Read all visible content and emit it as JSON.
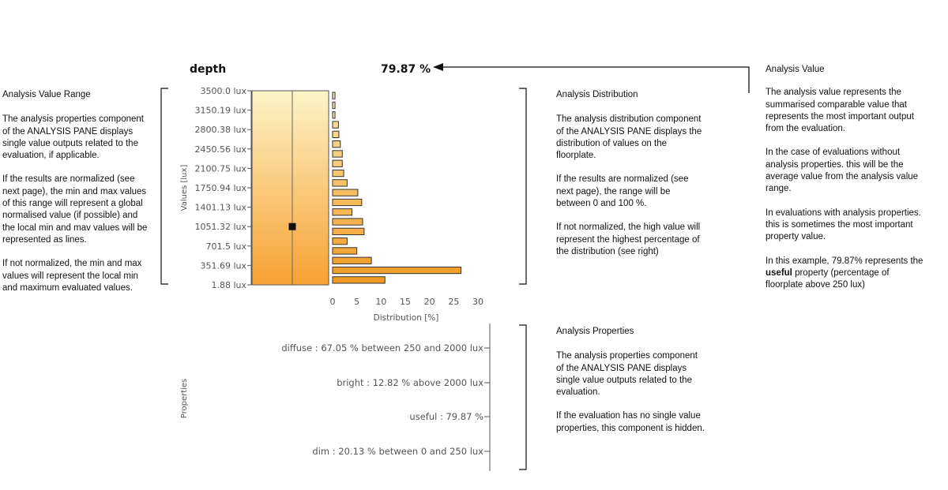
{
  "header": {
    "metric": "depth",
    "value": "79.87 %"
  },
  "range_note": {
    "title": "Analysis Value Range",
    "p1": "The analysis properties component of the ANALYSIS PANE displays single value outputs related to the evaluation, if applicable.",
    "p2": "If  the results are normalized (see next page), the min and max values of this range will represent a global normalised value (if possible) and the local min and mav values will be represented as lines.",
    "p3": "If not normalized, the min and max values will represent the local min and maximum evaluated values."
  },
  "distribution_note": {
    "title": "Analysis Distribution",
    "p1": "The analysis distribution component of the ANALYSIS PANE displays the distribution of values on the floorplate.",
    "p2": "If the results are normalized (see next page), the range will be between 0 and 100 %.",
    "p3": "If not normalized, the high value will represent the highest percentage of the distribution (see right)"
  },
  "value_note": {
    "title": "Analysis Value",
    "p1": "The analysis value represents the summarised comparable value that represents the most important output from the evaluation.",
    "p2": "In the case of evaluations without analysis properties. this will be the average value from the analysis value range.",
    "p3": "In evaluations with analysis properties. this is sometimes the most important property value.",
    "p4_a": "In this example, 79.87% represents the ",
    "p4_b": "useful",
    "p4_c": " property (percentage of floorplate above 250 lux)"
  },
  "properties_note": {
    "title": "Analysis Properties",
    "p1": "The analysis properties component of the ANALYSIS PANE displays single value outputs related to the evaluation.",
    "p2": "If the evaluation has no single value properties, this component is hidden."
  },
  "properties_label": "Properties",
  "properties": [
    "diffuse : 67.05 % between 250 and 2000 lux",
    "bright : 12.82 % above 2000 lux",
    "useful : 79.87 %",
    "dim : 20.13 % between 0 and 250 lux"
  ],
  "chart_data": {
    "type": "bar",
    "orientation": "horizontal",
    "ylabel": "Values [lux]",
    "xlabel": "Distribution [%]",
    "y_ticks": [
      "3500.0 lux",
      "3150.19 lux",
      "2800.38 lux",
      "2450.56 lux",
      "2100.75 lux",
      "1750.94 lux",
      "1401.13 lux",
      "1051.32 lux",
      "701.5 lux",
      "351.69 lux",
      "1.88 lux"
    ],
    "x_ticks": [
      "0",
      "5",
      "10",
      "15",
      "20",
      "25",
      "30"
    ],
    "xlim": [
      0,
      30
    ],
    "ylim": [
      1.88,
      3500.0
    ],
    "marker_value": 1051.32,
    "bins_top_to_bottom": [
      0.5,
      0.5,
      0.5,
      1.2,
      1.3,
      1.6,
      2.0,
      2.0,
      2.3,
      3.0,
      5.2,
      6.0,
      4.0,
      6.2,
      6.5,
      3.0,
      5.0,
      8.0,
      26.5,
      10.8
    ],
    "bar_color_light": "#fbe7a3",
    "bar_color_dark": "#f19a24",
    "gradient_top": "#fdf4c8",
    "gradient_bottom": "#f7a132"
  }
}
